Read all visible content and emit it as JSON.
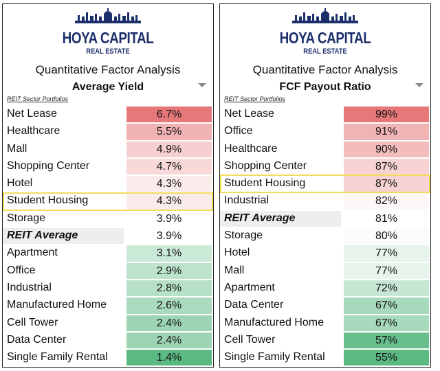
{
  "panels": [
    {
      "logo_main": "HOYA CAPITAL",
      "logo_sub": "REAL ESTATE",
      "subtitle": "Quantitative Factor Analysis",
      "metric": "Average Yield",
      "section_label": "REIT Sector Portfolios"
    },
    {
      "logo_main": "HOYA CAPITAL",
      "logo_sub": "REAL ESTATE",
      "subtitle": "Quantitative Factor Analysis",
      "metric": "FCF Payout Ratio",
      "section_label": "REIT Sector Portfolios"
    }
  ],
  "colors": {
    "logo_navy": "#1c2f6b",
    "high_red": "#e6787a",
    "low_green": "#5bb982",
    "average_gray": "#eeeeee",
    "highlight_yellow": "#f3dc5a"
  },
  "chart_data": [
    {
      "type": "table",
      "title": "Average Yield",
      "unit": "%",
      "rows": [
        {
          "label": "Net Lease",
          "value": 6.7,
          "display": "6.7%"
        },
        {
          "label": "Healthcare",
          "value": 5.5,
          "display": "5.5%"
        },
        {
          "label": "Mall",
          "value": 4.9,
          "display": "4.9%"
        },
        {
          "label": "Shopping Center",
          "value": 4.7,
          "display": "4.7%"
        },
        {
          "label": "Hotel",
          "value": 4.3,
          "display": "4.3%"
        },
        {
          "label": "Student Housing",
          "value": 4.3,
          "display": "4.3%",
          "highlighted": true
        },
        {
          "label": "Storage",
          "value": 3.9,
          "display": "3.9%"
        },
        {
          "label": "REIT Average",
          "value": 3.9,
          "display": "3.9%",
          "average": true
        },
        {
          "label": "Apartment",
          "value": 3.1,
          "display": "3.1%"
        },
        {
          "label": "Office",
          "value": 2.9,
          "display": "2.9%"
        },
        {
          "label": "Industrial",
          "value": 2.8,
          "display": "2.8%"
        },
        {
          "label": "Manufactured Home",
          "value": 2.6,
          "display": "2.6%"
        },
        {
          "label": "Cell Tower",
          "value": 2.4,
          "display": "2.4%"
        },
        {
          "label": "Data Center",
          "value": 2.4,
          "display": "2.4%"
        },
        {
          "label": "Single Family Rental",
          "value": 1.4,
          "display": "1.4%"
        }
      ]
    },
    {
      "type": "table",
      "title": "FCF Payout Ratio",
      "unit": "%",
      "rows": [
        {
          "label": "Net Lease",
          "value": 99,
          "display": "99%"
        },
        {
          "label": "Office",
          "value": 91,
          "display": "91%"
        },
        {
          "label": "Healthcare",
          "value": 90,
          "display": "90%"
        },
        {
          "label": "Shopping Center",
          "value": 87,
          "display": "87%"
        },
        {
          "label": "Student Housing",
          "value": 87,
          "display": "87%",
          "highlighted": true
        },
        {
          "label": "Industrial",
          "value": 82,
          "display": "82%"
        },
        {
          "label": "REIT Average",
          "value": 81,
          "display": "81%",
          "average": true
        },
        {
          "label": "Storage",
          "value": 80,
          "display": "80%"
        },
        {
          "label": "Hotel",
          "value": 77,
          "display": "77%"
        },
        {
          "label": "Mall",
          "value": 77,
          "display": "77%"
        },
        {
          "label": "Apartment",
          "value": 72,
          "display": "72%"
        },
        {
          "label": "Data Center",
          "value": 67,
          "display": "67%"
        },
        {
          "label": "Manufactured Home",
          "value": 67,
          "display": "67%"
        },
        {
          "label": "Cell Tower",
          "value": 57,
          "display": "57%"
        },
        {
          "label": "Single Family Rental",
          "value": 55,
          "display": "55%"
        }
      ]
    }
  ]
}
